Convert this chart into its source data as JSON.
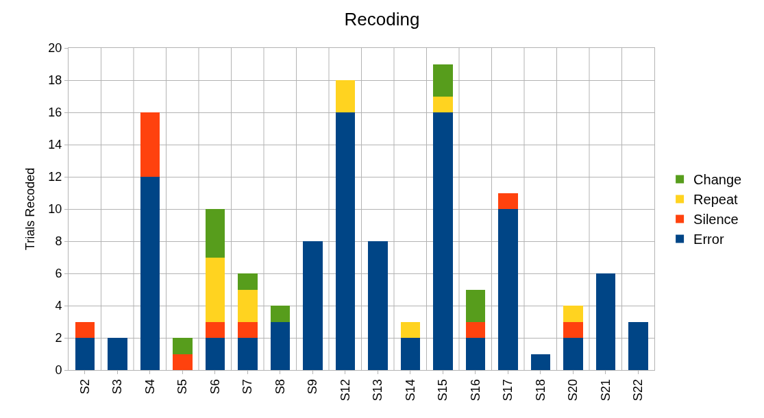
{
  "chart_data": {
    "type": "bar",
    "title": "Recoding",
    "ylabel": "Trials Recoded",
    "stacked": true,
    "grid": true,
    "legend": "right",
    "categories": [
      "S2",
      "S3",
      "S4",
      "S5",
      "S6",
      "S7",
      "S8",
      "S9",
      "S12",
      "S13",
      "S14",
      "S15",
      "S16",
      "S17",
      "S18",
      "S20",
      "S21",
      "S22"
    ],
    "ylim": [
      0,
      20
    ],
    "yticks": [
      0,
      2,
      4,
      6,
      8,
      10,
      12,
      14,
      16,
      18,
      20
    ],
    "series": [
      {
        "name": "Error",
        "color": "#004586",
        "values": [
          2,
          2,
          12,
          0,
          2,
          2,
          3,
          8,
          16,
          8,
          2,
          16,
          2,
          10,
          1,
          2,
          6,
          3
        ]
      },
      {
        "name": "Silence",
        "color": "#ff420e",
        "values": [
          1,
          0,
          4,
          1,
          1,
          1,
          0,
          0,
          0,
          0,
          0,
          0,
          1,
          1,
          0,
          1,
          0,
          0
        ]
      },
      {
        "name": "Repeat",
        "color": "#ffd320",
        "values": [
          0,
          0,
          0,
          0,
          4,
          2,
          0,
          0,
          2,
          0,
          1,
          1,
          0,
          0,
          0,
          1,
          0,
          0
        ]
      },
      {
        "name": "Change",
        "color": "#579d1c",
        "values": [
          0,
          0,
          0,
          1,
          3,
          1,
          1,
          0,
          0,
          0,
          0,
          2,
          2,
          0,
          0,
          0,
          0,
          0
        ]
      }
    ]
  }
}
